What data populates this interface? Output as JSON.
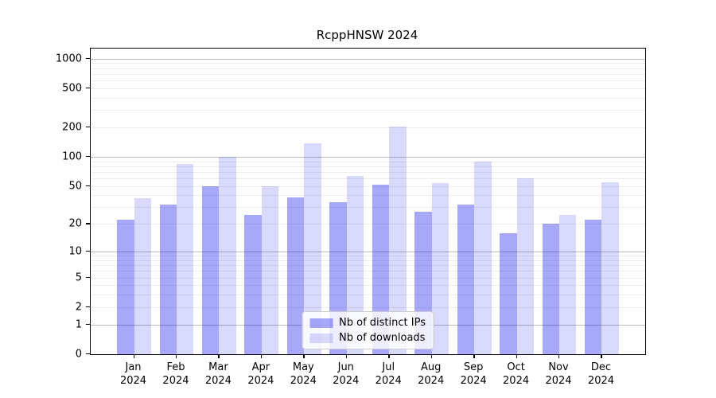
{
  "title": "RcppHNSW 2024",
  "chart_data": {
    "type": "bar",
    "title": "RcppHNSW 2024",
    "categories": [
      "Jan",
      "Feb",
      "Mar",
      "Apr",
      "May",
      "Jun",
      "Jul",
      "Aug",
      "Sep",
      "Oct",
      "Nov",
      "Dec"
    ],
    "year_label": "2024",
    "series": [
      {
        "name": "Nb of distinct IPs",
        "color": "rgba(0,0,235,0.34)",
        "values": [
          22,
          32,
          50,
          25,
          38,
          34,
          52,
          27,
          32,
          16,
          20,
          22
        ]
      },
      {
        "name": "Nb of downloads",
        "color": "rgba(0,0,235,0.15)",
        "values": [
          37,
          85,
          100,
          50,
          138,
          63,
          205,
          54,
          89,
          60,
          25,
          55
        ]
      }
    ],
    "y_scale": "log10(1+y)",
    "y_ticks": [
      0,
      1,
      2,
      5,
      10,
      20,
      50,
      100,
      200,
      500,
      1000
    ],
    "y_max": 1265,
    "x_range_slots": [
      -1.02,
      12.02
    ],
    "bar_width_slots": 0.4,
    "grid": {
      "major_at": [
        1,
        10,
        100,
        1000
      ],
      "minor_decades": [
        1,
        10,
        100
      ],
      "major_color": "#bbbbbb",
      "minor_color": "#ededed"
    },
    "legend_position": "lower center",
    "axis_color": "#000000",
    "background_color": "#ffffff"
  }
}
